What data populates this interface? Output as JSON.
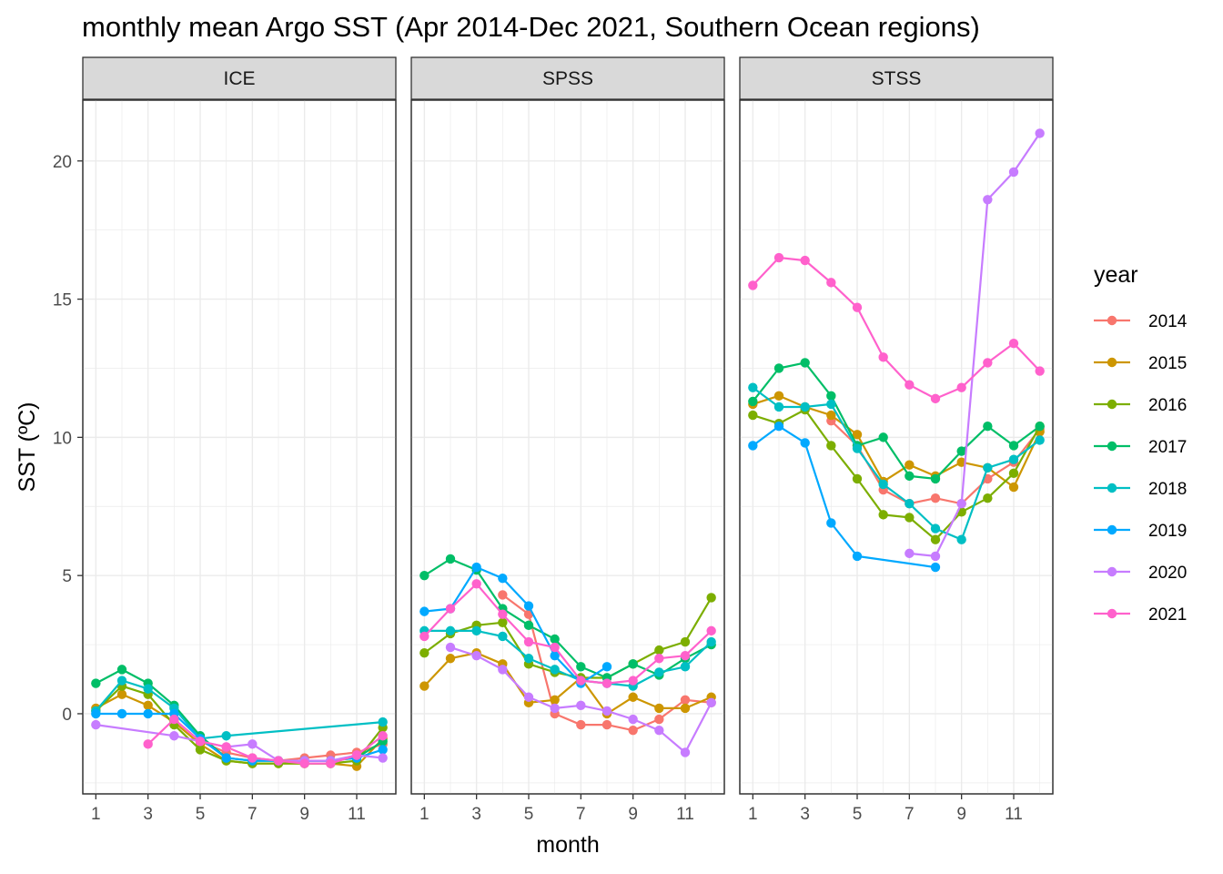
{
  "chart_data": {
    "type": "line",
    "title": "monthly mean Argo SST (Apr 2014-Dec 2021, Southern Ocean regions)",
    "xlabel": "month",
    "ylabel": "SST (ºC)",
    "x_ticks": [
      1,
      3,
      5,
      7,
      9,
      11
    ],
    "y_ticks": [
      0,
      5,
      10,
      15,
      20
    ],
    "xlim": [
      0.5,
      12.5
    ],
    "ylim": [
      -2.9,
      22.2
    ],
    "legend": {
      "title": "year",
      "placement": "right",
      "entries": [
        "2014",
        "2015",
        "2016",
        "2017",
        "2018",
        "2019",
        "2020",
        "2021"
      ]
    },
    "colors": {
      "2014": "#F8766D",
      "2015": "#CD9600",
      "2016": "#7CAE00",
      "2017": "#00BE67",
      "2018": "#00BFC4",
      "2019": "#00A9FF",
      "2020": "#C77CFF",
      "2021": "#FF61CC"
    },
    "panels": [
      {
        "name": "ICE",
        "series": [
          {
            "year": "2014",
            "x": [
              4,
              5,
              6,
              7,
              8,
              9,
              10,
              11,
              12
            ],
            "y": [
              -0.2,
              -1.0,
              -1.4,
              -1.6,
              -1.7,
              -1.6,
              -1.5,
              -1.4,
              -1.1
            ]
          },
          {
            "year": "2015",
            "x": [
              1,
              2,
              3,
              4,
              5,
              6,
              7,
              8,
              9,
              10,
              11,
              12
            ],
            "y": [
              0.2,
              0.7,
              0.3,
              -0.3,
              -1.1,
              -1.7,
              -1.8,
              -1.8,
              -1.8,
              -1.8,
              -1.9,
              -0.9
            ]
          },
          {
            "year": "2016",
            "x": [
              1,
              2,
              3,
              4,
              5,
              6,
              7,
              8,
              9,
              10,
              11,
              12
            ],
            "y": [
              0.1,
              1.0,
              0.7,
              -0.4,
              -1.3,
              -1.7,
              -1.8,
              -1.8,
              -1.8,
              -1.8,
              -1.7,
              -0.5
            ]
          },
          {
            "year": "2017",
            "x": [
              1,
              2,
              3,
              4,
              5,
              6,
              7,
              8,
              9,
              10,
              11,
              12
            ],
            "y": [
              1.1,
              1.6,
              1.1,
              0.3,
              -0.8,
              -1.6,
              -1.7,
              -1.7,
              -1.7,
              -1.7,
              -1.6,
              -1.0
            ]
          },
          {
            "year": "2018",
            "x": [
              1,
              2,
              3,
              4,
              5,
              6,
              12
            ],
            "y": [
              0.1,
              1.2,
              0.9,
              0.2,
              -0.9,
              -0.8,
              -0.3
            ]
          },
          {
            "year": "2019",
            "x": [
              1,
              2,
              3,
              4,
              5,
              6,
              7,
              8,
              9,
              10,
              11,
              12
            ],
            "y": [
              0.0,
              0.0,
              0.0,
              0.0,
              -0.9,
              -1.6,
              -1.7,
              -1.7,
              -1.7,
              -1.7,
              -1.6,
              -1.3
            ]
          },
          {
            "year": "2020",
            "x": [
              1,
              4,
              5,
              6,
              7,
              8,
              9,
              10,
              11,
              12
            ],
            "y": [
              -0.4,
              -0.8,
              -1.0,
              -1.2,
              -1.1,
              -1.7,
              -1.7,
              -1.7,
              -1.5,
              -1.6
            ]
          },
          {
            "year": "2021",
            "x": [
              3,
              4,
              5,
              6,
              7,
              8,
              9,
              10,
              11,
              12
            ],
            "y": [
              -1.1,
              -0.2,
              -1.0,
              -1.2,
              -1.6,
              -1.7,
              -1.8,
              -1.8,
              -1.5,
              -0.8
            ]
          }
        ]
      },
      {
        "name": "SPSS",
        "series": [
          {
            "year": "2014",
            "x": [
              4,
              5,
              6,
              7,
              8,
              9,
              10,
              11,
              12
            ],
            "y": [
              4.3,
              3.6,
              0.0,
              -0.4,
              -0.4,
              -0.6,
              -0.2,
              0.5,
              0.4
            ]
          },
          {
            "year": "2015",
            "x": [
              1,
              2,
              3,
              4,
              5,
              6,
              7,
              8,
              9,
              10,
              11,
              12
            ],
            "y": [
              1.0,
              2.0,
              2.2,
              1.8,
              0.4,
              0.5,
              1.3,
              0.0,
              0.6,
              0.2,
              0.2,
              0.6
            ]
          },
          {
            "year": "2016",
            "x": [
              1,
              2,
              3,
              4,
              5,
              6,
              7,
              8,
              9,
              10,
              11,
              12
            ],
            "y": [
              2.2,
              2.9,
              3.2,
              3.3,
              1.8,
              1.5,
              1.3,
              1.3,
              1.8,
              2.3,
              2.6,
              4.2
            ]
          },
          {
            "year": "2017",
            "x": [
              1,
              2,
              3,
              4,
              5,
              6,
              7,
              8,
              9,
              10,
              11,
              12
            ],
            "y": [
              5.0,
              5.6,
              5.2,
              3.8,
              3.2,
              2.7,
              1.7,
              1.3,
              1.8,
              1.4,
              2.0,
              2.5
            ]
          },
          {
            "year": "2018",
            "x": [
              1,
              2,
              3,
              4,
              5,
              6,
              7,
              8,
              9,
              10,
              11,
              12
            ],
            "y": [
              3.0,
              3.0,
              3.0,
              2.8,
              2.0,
              1.6,
              1.2,
              1.1,
              1.0,
              1.5,
              1.7,
              2.6
            ]
          },
          {
            "year": "2019",
            "x": [
              1,
              2,
              3,
              4,
              5,
              6,
              7,
              8
            ],
            "y": [
              3.7,
              3.8,
              5.3,
              4.9,
              3.9,
              2.1,
              1.1,
              1.7
            ]
          },
          {
            "year": "2020",
            "x": [
              2,
              3,
              4,
              5,
              6,
              7,
              8,
              9,
              10,
              11,
              12
            ],
            "y": [
              2.4,
              2.1,
              1.6,
              0.6,
              0.2,
              0.3,
              0.1,
              -0.2,
              -0.6,
              -1.4,
              0.4
            ]
          },
          {
            "year": "2021",
            "x": [
              1,
              2,
              3,
              4,
              5,
              6,
              7,
              8,
              9,
              10,
              11,
              12
            ],
            "y": [
              2.8,
              3.8,
              4.7,
              3.6,
              2.6,
              2.4,
              1.2,
              1.1,
              1.2,
              2.0,
              2.1,
              3.0
            ]
          }
        ]
      },
      {
        "name": "STSS",
        "series": [
          {
            "year": "2014",
            "x": [
              4,
              5,
              6,
              7,
              8,
              9,
              10,
              11,
              12
            ],
            "y": [
              10.6,
              9.7,
              8.1,
              7.6,
              7.8,
              7.6,
              8.5,
              9.1,
              10.3
            ]
          },
          {
            "year": "2015",
            "x": [
              1,
              2,
              3,
              4,
              5,
              6,
              7,
              8,
              9,
              10,
              11,
              12
            ],
            "y": [
              11.2,
              11.5,
              11.1,
              10.8,
              10.1,
              8.4,
              9.0,
              8.6,
              9.1,
              8.9,
              8.2,
              10.2
            ]
          },
          {
            "year": "2016",
            "x": [
              1,
              2,
              3,
              4,
              5,
              6,
              7,
              8,
              9,
              10,
              11,
              12
            ],
            "y": [
              10.8,
              10.5,
              11.0,
              9.7,
              8.5,
              7.2,
              7.1,
              6.3,
              7.3,
              7.8,
              8.7,
              10.4
            ]
          },
          {
            "year": "2017",
            "x": [
              1,
              2,
              3,
              4,
              5,
              6,
              7,
              8,
              9,
              10,
              11,
              12
            ],
            "y": [
              11.3,
              12.5,
              12.7,
              11.5,
              9.7,
              10.0,
              8.6,
              8.5,
              9.5,
              10.4,
              9.7,
              10.4
            ]
          },
          {
            "year": "2018",
            "x": [
              1,
              2,
              3,
              4,
              5,
              6,
              7,
              8,
              9,
              10,
              11,
              12
            ],
            "y": [
              11.8,
              11.1,
              11.1,
              11.2,
              9.6,
              8.3,
              7.6,
              6.7,
              6.3,
              8.9,
              9.2,
              9.9
            ]
          },
          {
            "year": "2019",
            "x": [
              1,
              2,
              3,
              4,
              5,
              8
            ],
            "y": [
              9.7,
              10.4,
              9.8,
              6.9,
              5.7,
              5.3
            ]
          },
          {
            "year": "2020",
            "x": [
              7,
              8,
              9,
              10,
              11,
              12
            ],
            "y": [
              5.8,
              5.7,
              7.6,
              18.6,
              19.6,
              21.0
            ]
          },
          {
            "year": "2021",
            "x": [
              1,
              2,
              3,
              4,
              5,
              6,
              7,
              8,
              9,
              10,
              11,
              12
            ],
            "y": [
              15.5,
              16.5,
              16.4,
              15.6,
              14.7,
              12.9,
              11.9,
              11.4,
              11.8,
              12.7,
              13.4,
              12.4
            ]
          }
        ]
      }
    ]
  }
}
